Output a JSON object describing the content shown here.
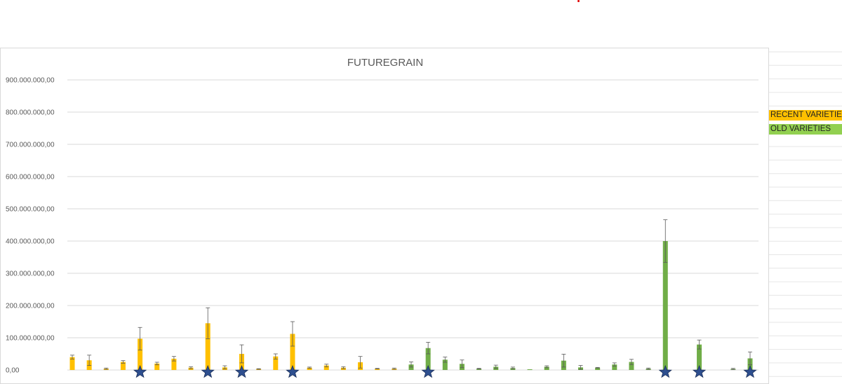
{
  "legend": {
    "recent_label": "RECENT VARIETIES",
    "old_label": "OLD VARIETIES"
  },
  "colors": {
    "recent": "#ffc000",
    "old": "#70ad47",
    "star": "#2e4f8f",
    "grid": "#d9d9d9",
    "error_bar": "#595959"
  },
  "chart_data": {
    "type": "bar",
    "title": "FUTUREGRAIN",
    "xlabel": "",
    "ylabel": "",
    "ylim": [
      0,
      900000000
    ],
    "y_ticks": [
      "0,00",
      "100.000.000,00",
      "200.000.000,00",
      "300.000.000,00",
      "400.000.000,00",
      "500.000.000,00",
      "600.000.000,00",
      "700.000.000,00",
      "800.000.000,00",
      "900.000.000,00"
    ],
    "grid": true,
    "legend_position": "right",
    "series": [
      {
        "name": "RECENT VARIETIES",
        "color": "#ffc000",
        "values": [
          40000000,
          30000000,
          4000000,
          25000000,
          97000000,
          20000000,
          35000000,
          7000000,
          145000000,
          8000000,
          50000000,
          3000000,
          42000000,
          112000000,
          7000000,
          14000000,
          7000000,
          24000000,
          4000000,
          4000000
        ],
        "errors": [
          6000000,
          16000000,
          2000000,
          4000000,
          35000000,
          4000000,
          7000000,
          3000000,
          48000000,
          5000000,
          28000000,
          1000000,
          8000000,
          38000000,
          2000000,
          4000000,
          3000000,
          18000000,
          1000000,
          2000000
        ],
        "starred": [
          false,
          false,
          false,
          false,
          true,
          false,
          false,
          false,
          true,
          false,
          true,
          false,
          false,
          true,
          false,
          false,
          false,
          false,
          false,
          false
        ]
      },
      {
        "name": "OLD VARIETIES",
        "color": "#70ad47",
        "values": [
          17000000,
          68000000,
          32000000,
          19000000,
          4000000,
          10000000,
          6000000,
          1000000,
          10000000,
          29000000,
          8000000,
          7000000,
          17000000,
          25000000,
          4000000,
          400000000,
          0,
          79000000,
          0,
          3000000,
          36000000
        ],
        "errors": [
          8000000,
          18000000,
          8000000,
          12000000,
          1000000,
          5000000,
          3000000,
          0,
          3000000,
          20000000,
          6000000,
          1000000,
          5000000,
          8000000,
          2000000,
          66000000,
          0,
          14000000,
          0,
          2000000,
          20000000
        ],
        "starred": [
          false,
          true,
          false,
          false,
          false,
          false,
          false,
          false,
          false,
          false,
          false,
          false,
          false,
          false,
          false,
          true,
          false,
          true,
          false,
          false,
          true
        ]
      }
    ]
  }
}
